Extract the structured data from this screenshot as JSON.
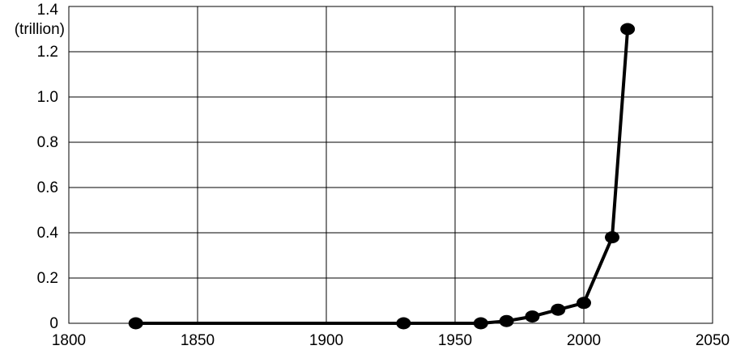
{
  "chart_data": {
    "type": "line",
    "title": "",
    "xlabel": "",
    "ylabel": "(trillion)",
    "xlim": [
      1800,
      2050
    ],
    "ylim": [
      0,
      1.4
    ],
    "x_ticks": [
      "1800",
      "1850",
      "1900",
      "1950",
      "2000",
      "2050"
    ],
    "y_ticks": [
      "0",
      "0.2",
      "0.4",
      "0.6",
      "0.8",
      "1.0",
      "1.2",
      "1.4"
    ],
    "grid": true,
    "legend": "none",
    "series": [
      {
        "color": "#000000",
        "x": [
          1826,
          1930,
          1960,
          1970,
          1980,
          1990,
          2000,
          2011,
          2017
        ],
        "y": [
          0,
          0,
          0,
          0.01,
          0.03,
          0.06,
          0.09,
          0.38,
          1.3
        ]
      }
    ]
  }
}
